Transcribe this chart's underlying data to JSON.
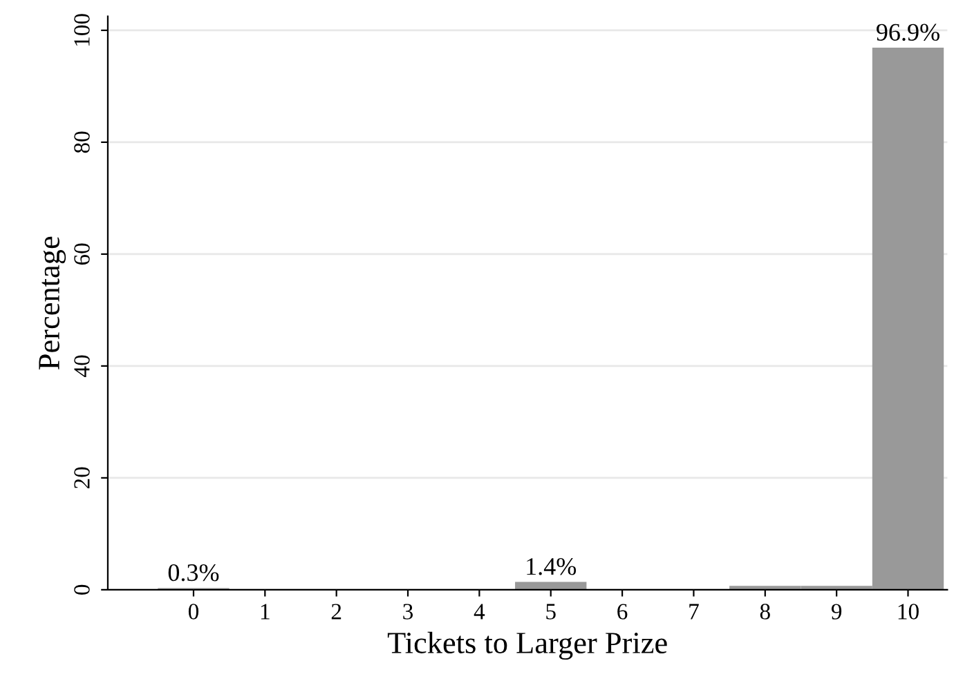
{
  "chart_data": {
    "type": "bar",
    "xlabel": "Tickets to Larger Prize",
    "ylabel": "Percentage",
    "x": [
      0,
      1,
      2,
      3,
      4,
      5,
      6,
      7,
      8,
      9,
      10
    ],
    "values": [
      0.3,
      0,
      0,
      0,
      0,
      1.4,
      0,
      0,
      0.7,
      0.7,
      96.9
    ],
    "value_labels": [
      "0.3%",
      null,
      null,
      null,
      null,
      "1.4%",
      null,
      null,
      null,
      null,
      "96.9%"
    ],
    "color": "#999999",
    "xlim": [
      -1.2,
      10.55
    ],
    "xticks": [
      0,
      1,
      2,
      3,
      4,
      5,
      6,
      7,
      8,
      9,
      10
    ],
    "ylim": [
      0,
      102.5
    ],
    "yticks": [
      0,
      20,
      40,
      60,
      80,
      100
    ],
    "grid": "y",
    "legend": false
  }
}
